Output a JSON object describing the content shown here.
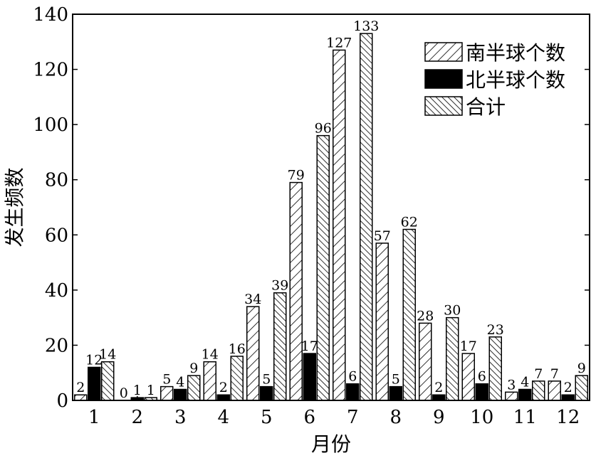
{
  "chart_data": {
    "type": "bar",
    "categories": [
      "1",
      "2",
      "3",
      "4",
      "5",
      "6",
      "7",
      "8",
      "9",
      "10",
      "11",
      "12"
    ],
    "series": [
      {
        "name": "南半球个数",
        "pattern": "hatch-right",
        "values": [
          2,
          0,
          5,
          14,
          34,
          79,
          127,
          57,
          28,
          17,
          3,
          7
        ]
      },
      {
        "name": "北半球个数",
        "pattern": "solid",
        "values": [
          12,
          1,
          4,
          2,
          5,
          17,
          6,
          5,
          2,
          6,
          4,
          2
        ]
      },
      {
        "name": "合计",
        "pattern": "hatch-left",
        "values": [
          14,
          1,
          9,
          16,
          39,
          96,
          133,
          62,
          30,
          23,
          7,
          9
        ]
      }
    ],
    "xlabel": "月份",
    "ylabel": "发生频数",
    "ylim": [
      0,
      140
    ],
    "yticks": [
      0,
      20,
      40,
      60,
      80,
      100,
      120,
      140
    ],
    "legend_position": "top-right",
    "grid": false
  }
}
